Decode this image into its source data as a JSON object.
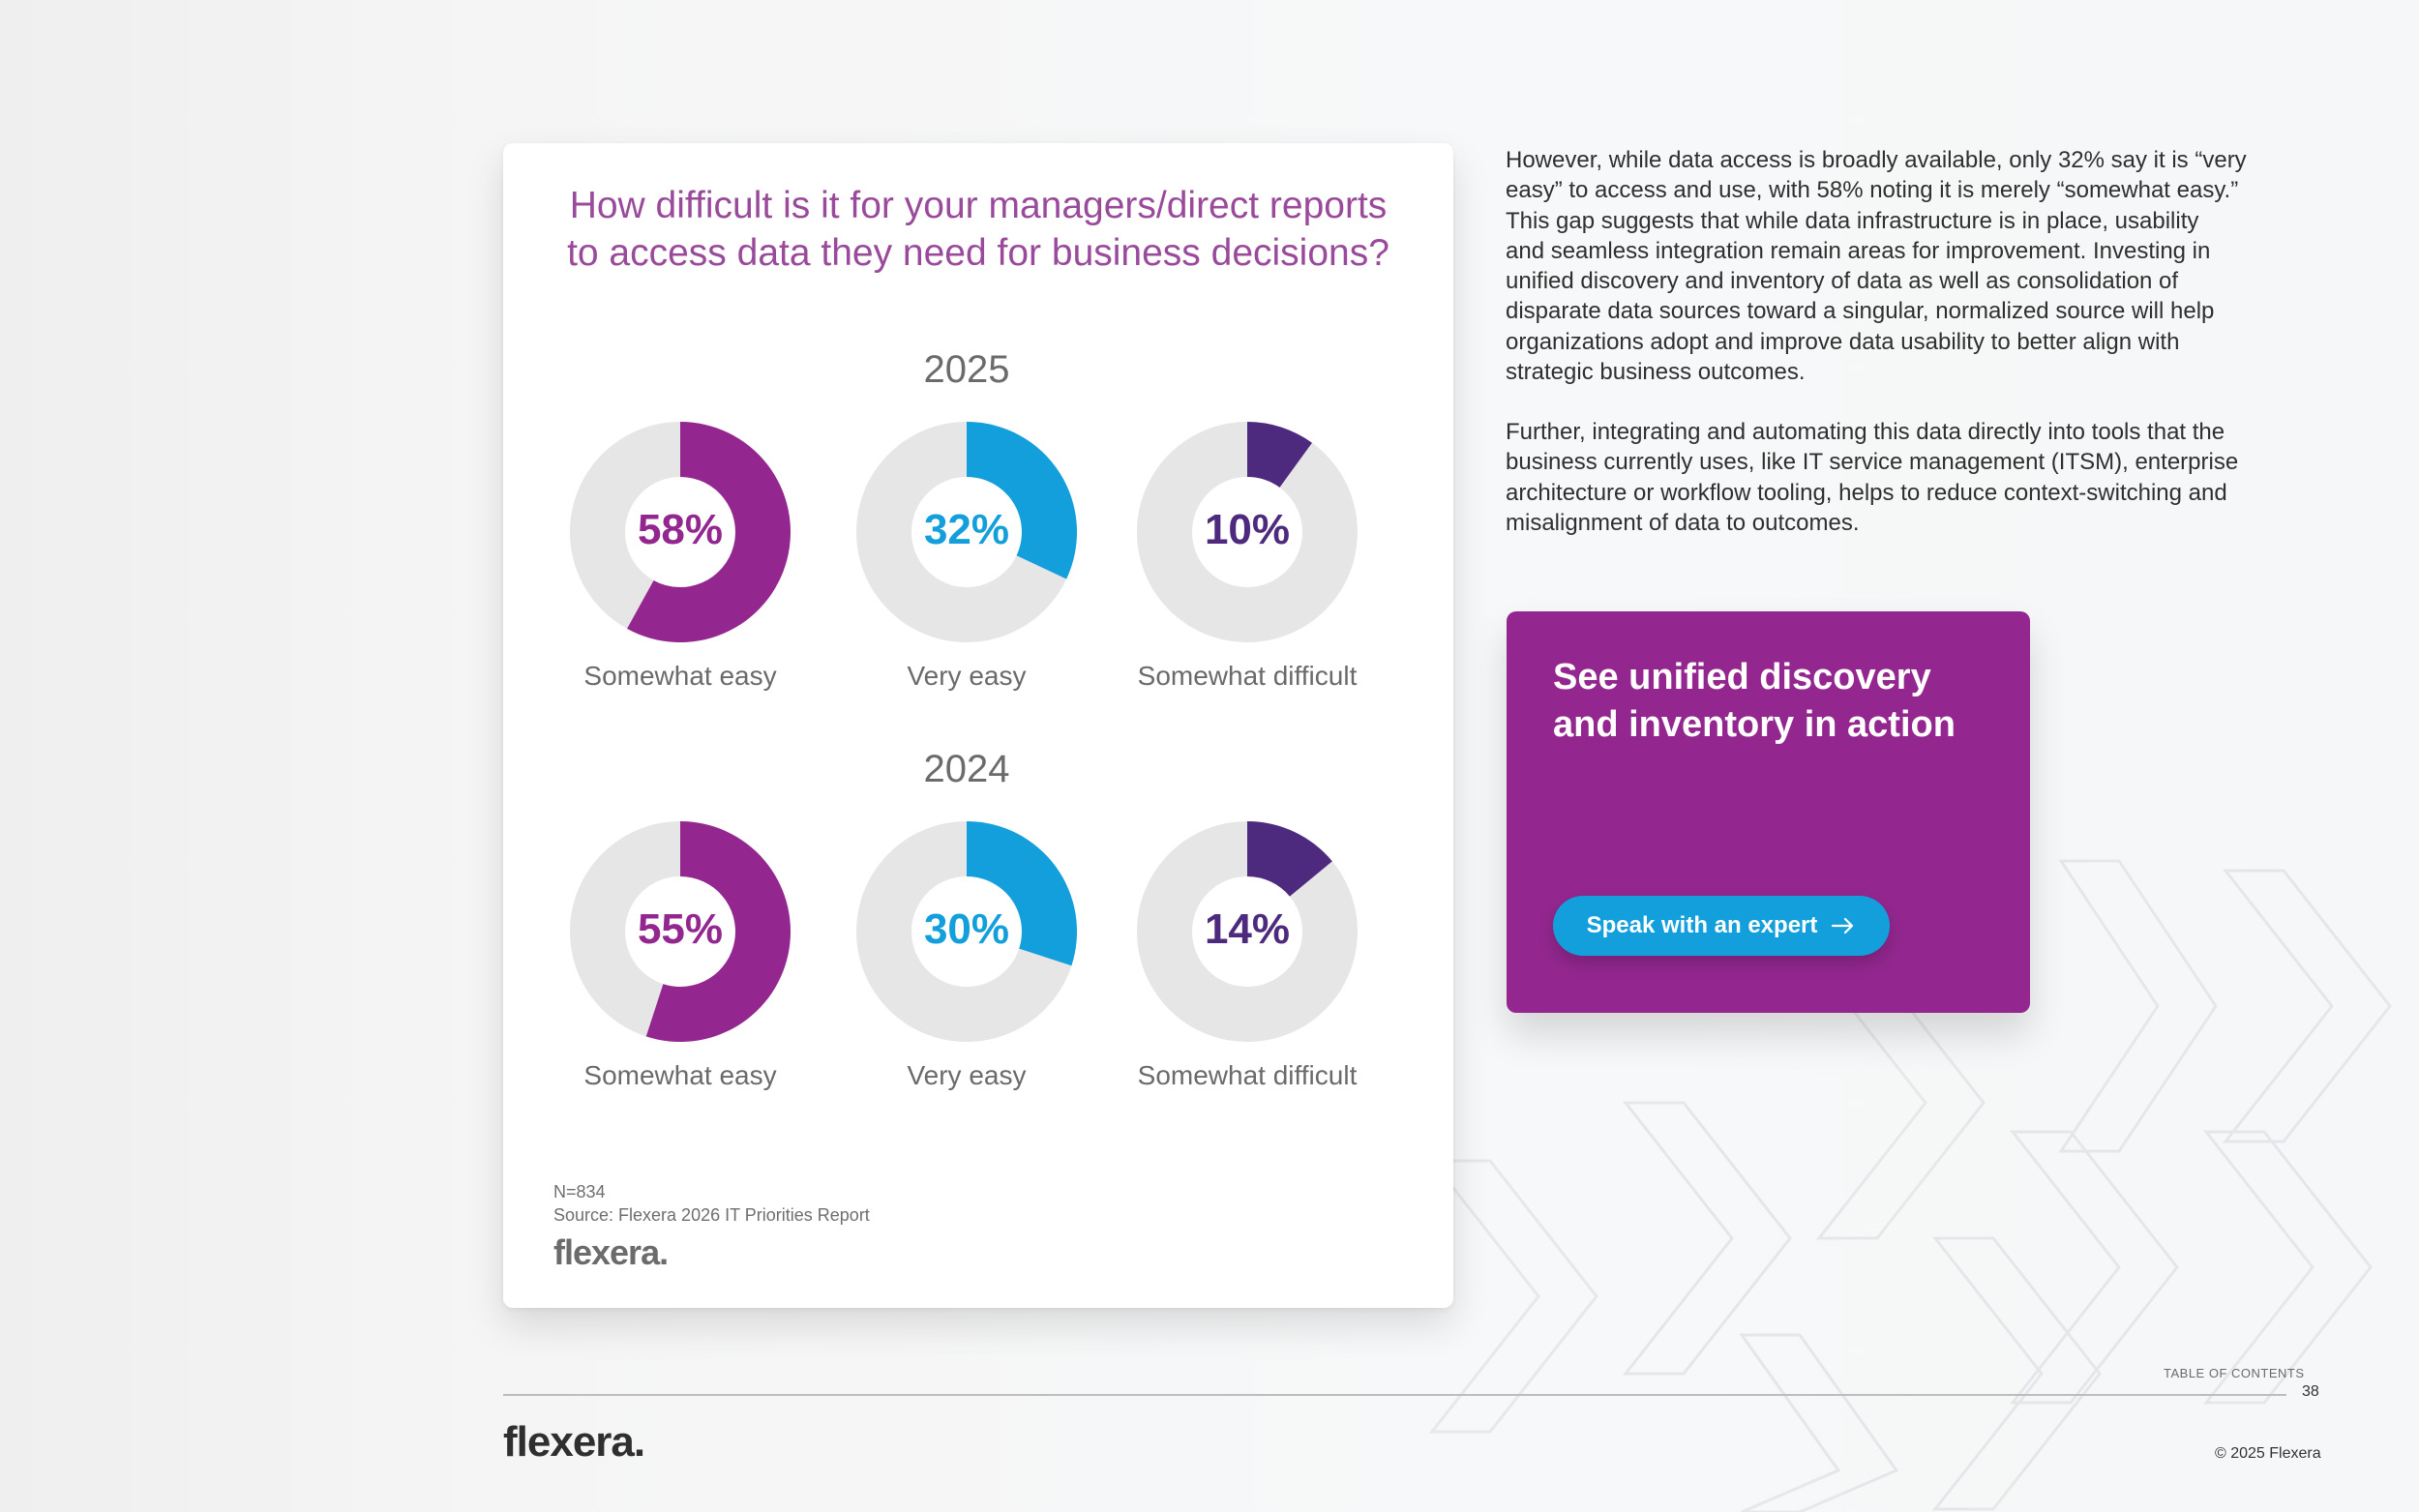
{
  "chart": {
    "title_line1": "How difficult is it for your managers/direct reports",
    "title_line2": "to access data they need for business decisions?",
    "footnote_n": "N=834",
    "footnote_source": "Source: Flexera 2026 IT Priorities Report",
    "logo": "flexera"
  },
  "chart_data": [
    {
      "type": "pie",
      "title": "2025",
      "slices": [
        {
          "label": "Somewhat easy",
          "value": 58,
          "value_label": "58%",
          "color": "#93278f"
        },
        {
          "label": "Very easy",
          "value": 32,
          "value_label": "32%",
          "color": "#129fdc"
        },
        {
          "label": "Somewhat difficult",
          "value": 10,
          "value_label": "10%",
          "color": "#4e2a7f"
        }
      ]
    },
    {
      "type": "pie",
      "title": "2024",
      "slices": [
        {
          "label": "Somewhat easy",
          "value": 55,
          "value_label": "55%",
          "color": "#93278f"
        },
        {
          "label": "Very easy",
          "value": 30,
          "value_label": "30%",
          "color": "#129fdc"
        },
        {
          "label": "Somewhat difficult",
          "value": 14,
          "value_label": "14%",
          "color": "#4e2a7f"
        }
      ]
    }
  ],
  "body": {
    "para1": [
      "However, while data access is broadly available, only 32% say it is “very",
      "easy” to access and use, with 58% noting it is merely “somewhat easy.”",
      "This gap suggests that while data infrastructure is in place, usability",
      "and seamless integration remain areas for improvement. Investing in",
      "unified discovery and inventory of data as well as consolidation of",
      "disparate data sources toward a singular, normalized source will help",
      "organizations adopt and improve data usability to better align with",
      "strategic business outcomes."
    ],
    "para2": [
      "Further, integrating and automating this data directly into tools that the",
      "business currently uses, like IT service management (ITSM), enterprise",
      "architecture or workflow tooling, helps to reduce context-switching and",
      "misalignment of data to outcomes."
    ]
  },
  "cta": {
    "title_line1": "See unified discovery",
    "title_line2": "and inventory in action",
    "button_label": "Speak with an expert",
    "button_icon": "arrow-right-icon"
  },
  "footer": {
    "toc_label": "TABLE OF CONTENTS",
    "page_number": "38",
    "logo": "flexera",
    "copyright": "© 2025 Flexera"
  },
  "colors": {
    "title": "#9a4a9a",
    "purple": "#93278f",
    "blue": "#129fdc",
    "dark_purple": "#4e2a7f",
    "track": "#e6e6e6"
  }
}
